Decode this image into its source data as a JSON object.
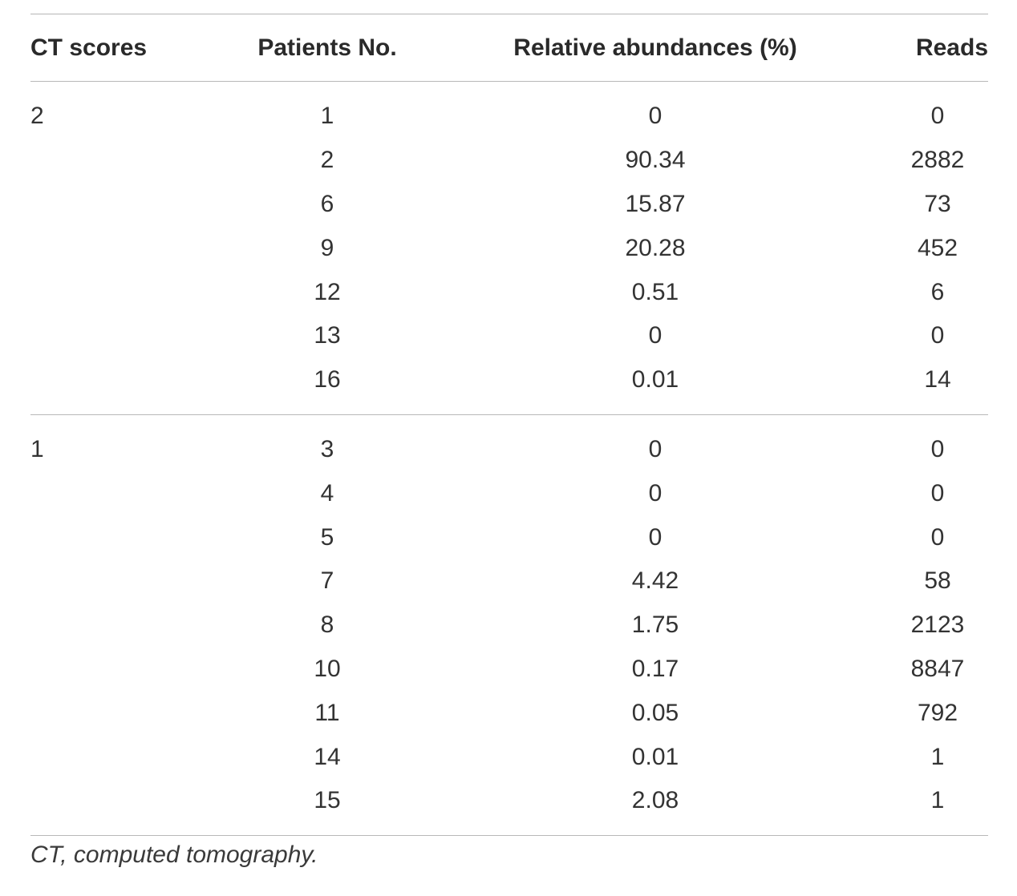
{
  "table": {
    "headers": {
      "ct": "CT scores",
      "patients": "Patients No.",
      "abundance": "Relative abundances (%)",
      "reads": "Reads"
    },
    "groups": [
      {
        "ct_score": "2",
        "rows": [
          {
            "patient": "1",
            "abundance": "0",
            "reads": "0"
          },
          {
            "patient": "2",
            "abundance": "90.34",
            "reads": "2882"
          },
          {
            "patient": "6",
            "abundance": "15.87",
            "reads": "73"
          },
          {
            "patient": "9",
            "abundance": "20.28",
            "reads": "452"
          },
          {
            "patient": "12",
            "abundance": "0.51",
            "reads": "6"
          },
          {
            "patient": "13",
            "abundance": "0",
            "reads": "0"
          },
          {
            "patient": "16",
            "abundance": "0.01",
            "reads": "14"
          }
        ]
      },
      {
        "ct_score": "1",
        "rows": [
          {
            "patient": "3",
            "abundance": "0",
            "reads": "0"
          },
          {
            "patient": "4",
            "abundance": "0",
            "reads": "0"
          },
          {
            "patient": "5",
            "abundance": "0",
            "reads": "0"
          },
          {
            "patient": "7",
            "abundance": "4.42",
            "reads": "58"
          },
          {
            "patient": "8",
            "abundance": "1.75",
            "reads": "2123"
          },
          {
            "patient": "10",
            "abundance": "0.17",
            "reads": "8847"
          },
          {
            "patient": "11",
            "abundance": "0.05",
            "reads": "792"
          },
          {
            "patient": "14",
            "abundance": "0.01",
            "reads": "1"
          },
          {
            "patient": "15",
            "abundance": "2.08",
            "reads": "1"
          }
        ]
      }
    ],
    "footnote": "CT, computed tomography."
  }
}
